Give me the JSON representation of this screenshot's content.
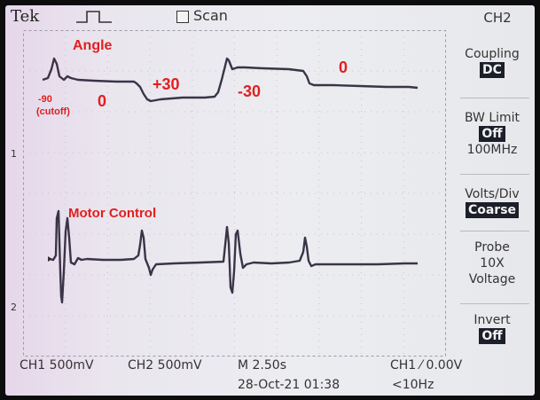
{
  "header": {
    "brand": "Tek",
    "trigger_icon": "square-pulse-icon",
    "scan_label": "Scan",
    "menu_title": "CH2"
  },
  "annotations": {
    "angle_title": "Angle",
    "minus90": "-90",
    "cutoff": "(cutoff)",
    "zero_a": "0",
    "plus30": "+30",
    "minus30": "-30",
    "zero_b": "0",
    "motor_title": "Motor Control"
  },
  "markers": {
    "ch1": "1",
    "ch2": "2"
  },
  "menu": {
    "coupling": {
      "label": "Coupling",
      "value": "DC"
    },
    "bw_limit": {
      "label": "BW Limit",
      "value": "Off",
      "sub": "100MHz"
    },
    "volts_div": {
      "label": "Volts/Div",
      "value": "Coarse"
    },
    "probe": {
      "label": "Probe",
      "line2": "10X",
      "line3": "Voltage"
    },
    "invert": {
      "label": "Invert",
      "value": "Off"
    }
  },
  "status": {
    "ch1": "CH1  500mV",
    "ch2": "CH2  500mV",
    "timebase": "M 2.50s",
    "trigger": "CH1 ⁄ 0.00V",
    "datetime": "28-Oct-21 01:38",
    "freq": "<10Hz"
  },
  "colors": {
    "trace": "#3b3448",
    "annotation": "#e01f1f",
    "highlight": "#1c1f2a"
  }
}
